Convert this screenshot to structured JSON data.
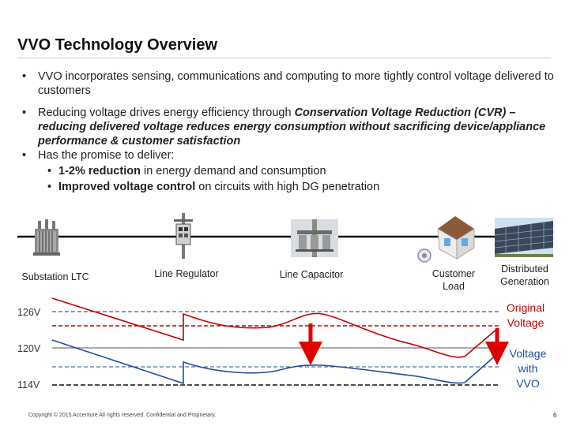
{
  "title": "VVO Technology Overview",
  "bullets": {
    "b1": "VVO incorporates sensing, communications and computing to more tightly control voltage delivered to customers",
    "b2_normal": "Reducing voltage drives energy efficiency through ",
    "b2_bold": "Conservation Voltage Reduction (CVR) – reducing delivered voltage reduces energy consumption without sacrificing device/appliance performance & customer satisfaction",
    "b3": "Has the promise to deliver:",
    "s1_bold": "1-2% reduction",
    "s1_rest": " in energy demand and consumption",
    "s2_bold": "Improved voltage control",
    "s2_rest": " on circuits with high DG penetration",
    "marker": "•"
  },
  "devices": {
    "substation": "Substation LTC",
    "regulator": "Line Regulator",
    "capacitor": "Line Capacitor",
    "customer_line1": "Customer",
    "customer_line2": "Load",
    "dg_line1": "Distributed",
    "dg_line2": "Generation"
  },
  "voltages": {
    "v126": "126V",
    "v120": "120V",
    "v114": "114V"
  },
  "legend": {
    "original_line1": "Original",
    "original_line2": "Voltage",
    "vvo_line1": "Voltage",
    "vvo_line2": "with",
    "vvo_line3": "VVO"
  },
  "colors": {
    "original": "#c00000",
    "vvo": "#1f4e9c",
    "arrow": "#e00000"
  },
  "footer": "Copyright © 2015 Accenture  All rights reserved.  Confidential and Proprietary.",
  "page_number": "6"
}
